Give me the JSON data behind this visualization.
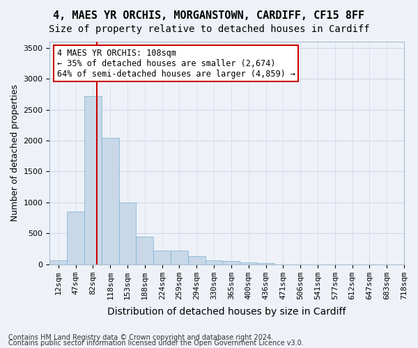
{
  "title1": "4, MAES YR ORCHIS, MORGANSTOWN, CARDIFF, CF15 8FF",
  "title2": "Size of property relative to detached houses in Cardiff",
  "xlabel": "Distribution of detached houses by size in Cardiff",
  "ylabel": "Number of detached properties",
  "bin_labels": [
    "12sqm",
    "47sqm",
    "82sqm",
    "118sqm",
    "153sqm",
    "188sqm",
    "224sqm",
    "259sqm",
    "294sqm",
    "330sqm",
    "365sqm",
    "400sqm",
    "436sqm",
    "471sqm",
    "506sqm",
    "541sqm",
    "577sqm",
    "612sqm",
    "647sqm",
    "683sqm",
    "718sqm"
  ],
  "bar_values": [
    60,
    850,
    2720,
    2050,
    1000,
    450,
    220,
    220,
    130,
    60,
    50,
    30,
    20,
    0,
    0,
    0,
    0,
    0,
    0,
    0
  ],
  "bar_color": "#c8d8e8",
  "bar_edge_color": "#7bafd4",
  "grid_color": "#d0d8e8",
  "background_color": "#eef2f8",
  "vline_x": 2.0,
  "vline_color": "#cc0000",
  "annotation_text": "4 MAES YR ORCHIS: 108sqm\n← 35% of detached houses are smaller (2,674)\n64% of semi-detached houses are larger (4,859) →",
  "annotation_box_color": "#ffffff",
  "annotation_border_color": "#cc0000",
  "ylim": [
    0,
    3600
  ],
  "yticks": [
    0,
    500,
    1000,
    1500,
    2000,
    2500,
    3000,
    3500
  ],
  "footer1": "Contains HM Land Registry data © Crown copyright and database right 2024.",
  "footer2": "Contains public sector information licensed under the Open Government Licence v3.0.",
  "title1_fontsize": 11,
  "title2_fontsize": 10,
  "axis_fontsize": 9,
  "tick_fontsize": 8,
  "annotation_fontsize": 8.5,
  "footer_fontsize": 7
}
